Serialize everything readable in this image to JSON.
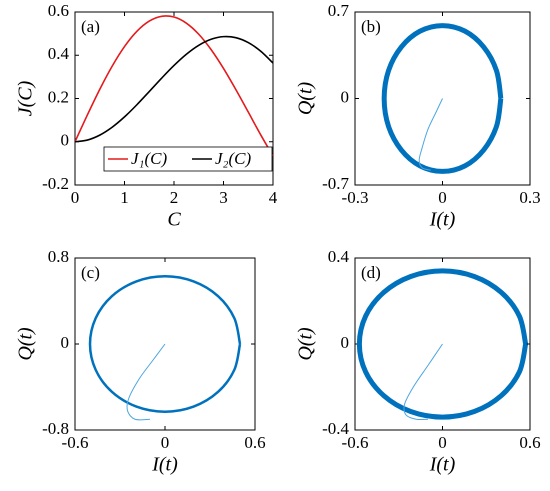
{
  "chart_data": [
    {
      "type": "line",
      "label": "(a)",
      "x_label": "C",
      "y_label": "J(C)",
      "xlim": [
        0,
        4
      ],
      "ylim": [
        -0.2,
        0.6
      ],
      "xticks": [
        0,
        1,
        2,
        3,
        4
      ],
      "yticks": [
        -0.2,
        0,
        0.2,
        0.4,
        0.6
      ],
      "legend": "south-east",
      "series": [
        {
          "name": "J₁(C)",
          "color": "#e41a1c",
          "line_width": 1.6,
          "x": [
            0,
            0.25,
            0.5,
            0.75,
            1,
            1.25,
            1.5,
            1.75,
            2,
            2.25,
            2.5,
            2.75,
            3,
            3.25,
            3.5,
            3.75,
            4
          ],
          "values": [
            0,
            0.124,
            0.2423,
            0.3492,
            0.4401,
            0.5106,
            0.5579,
            0.5802,
            0.5767,
            0.5484,
            0.4971,
            0.426,
            0.3391,
            0.2411,
            0.1374,
            0.0327,
            -0.066
          ]
        },
        {
          "name": "J₂(C)",
          "color": "#000000",
          "line_width": 1.6,
          "x": [
            0,
            0.25,
            0.5,
            0.75,
            1,
            1.25,
            1.5,
            1.75,
            2,
            2.25,
            2.5,
            2.75,
            3,
            3.25,
            3.5,
            3.75,
            4
          ],
          "values": [
            0,
            0.0078,
            0.0306,
            0.0671,
            0.1149,
            0.1711,
            0.2321,
            0.294,
            0.3528,
            0.4047,
            0.4461,
            0.4739,
            0.4861,
            0.4812,
            0.4586,
            0.4191,
            0.3641
          ]
        }
      ]
    },
    {
      "type": "line",
      "label": "(b)",
      "x_label": "I(t)",
      "y_label": "Q(t)",
      "xlim": [
        -0.3,
        0.3
      ],
      "ylim": [
        -0.7,
        0.7
      ],
      "xticks": [
        -0.3,
        0,
        0.3
      ],
      "yticks": [
        -0.7,
        0,
        0.7
      ],
      "series": [
        {
          "color": "#0072bd",
          "line_width": 5,
          "x": [
            0.2,
            0.185,
            0.141,
            0.077,
            0,
            -0.077,
            -0.141,
            -0.185,
            -0.2,
            -0.185,
            -0.141,
            -0.077,
            0,
            0.077,
            0.141,
            0.185,
            0.2
          ],
          "values": [
            0,
            0.226,
            0.417,
            0.545,
            0.59,
            0.545,
            0.417,
            0.226,
            0,
            -0.226,
            -0.417,
            -0.545,
            -0.59,
            -0.545,
            -0.417,
            -0.226,
            0
          ]
        },
        {
          "color": "#4da6e0",
          "line_width": 1,
          "x": [
            0,
            -0.02,
            -0.05,
            -0.07,
            -0.08,
            -0.07,
            -0.04
          ],
          "values": [
            0,
            -0.1,
            -0.25,
            -0.4,
            -0.5,
            -0.56,
            -0.58
          ]
        }
      ]
    },
    {
      "type": "line",
      "label": "(c)",
      "x_label": "I(t)",
      "y_label": "Q(t)",
      "xlim": [
        -0.6,
        0.6
      ],
      "ylim": [
        -0.8,
        0.8
      ],
      "xticks": [
        -0.6,
        0,
        0.6
      ],
      "yticks": [
        -0.8,
        0,
        0.8
      ],
      "series": [
        {
          "color": "#0072bd",
          "line_width": 2.5,
          "x": [
            0.5,
            0.462,
            0.354,
            0.191,
            0,
            -0.191,
            -0.354,
            -0.462,
            -0.5,
            -0.462,
            -0.354,
            -0.191,
            0,
            0.191,
            0.354,
            0.462,
            0.5
          ],
          "values": [
            0,
            0.241,
            0.445,
            0.582,
            0.63,
            0.582,
            0.445,
            0.241,
            0,
            -0.241,
            -0.445,
            -0.582,
            -0.63,
            -0.582,
            -0.445,
            -0.241,
            0
          ]
        },
        {
          "color": "#4da6e0",
          "line_width": 1,
          "x": [
            0,
            -0.08,
            -0.17,
            -0.24,
            -0.25,
            -0.2,
            -0.1
          ],
          "values": [
            0,
            -0.15,
            -0.32,
            -0.5,
            -0.62,
            -0.7,
            -0.7
          ]
        }
      ]
    },
    {
      "type": "line",
      "label": "(d)",
      "x_label": "I(t)",
      "y_label": "Q(t)",
      "xlim": [
        -0.6,
        0.6
      ],
      "ylim": [
        -0.4,
        0.4
      ],
      "xticks": [
        -0.6,
        0,
        0.6
      ],
      "yticks": [
        -0.4,
        0,
        0.4
      ],
      "series": [
        {
          "color": "#0072bd",
          "line_width": 5,
          "x": [
            0.57,
            0.527,
            0.403,
            0.218,
            0,
            -0.218,
            -0.403,
            -0.527,
            -0.57,
            -0.527,
            -0.403,
            -0.218,
            0,
            0.218,
            0.403,
            0.527,
            0.57
          ],
          "values": [
            0,
            0.13,
            0.24,
            0.314,
            0.34,
            0.314,
            0.24,
            0.13,
            0,
            -0.13,
            -0.24,
            -0.314,
            -0.34,
            -0.314,
            -0.24,
            -0.13,
            0
          ]
        },
        {
          "color": "#4da6e0",
          "line_width": 1,
          "x": [
            0,
            -0.1,
            -0.2,
            -0.26,
            -0.25,
            -0.18,
            -0.1
          ],
          "values": [
            0,
            -0.1,
            -0.2,
            -0.28,
            -0.33,
            -0.35,
            -0.35
          ]
        }
      ]
    }
  ]
}
